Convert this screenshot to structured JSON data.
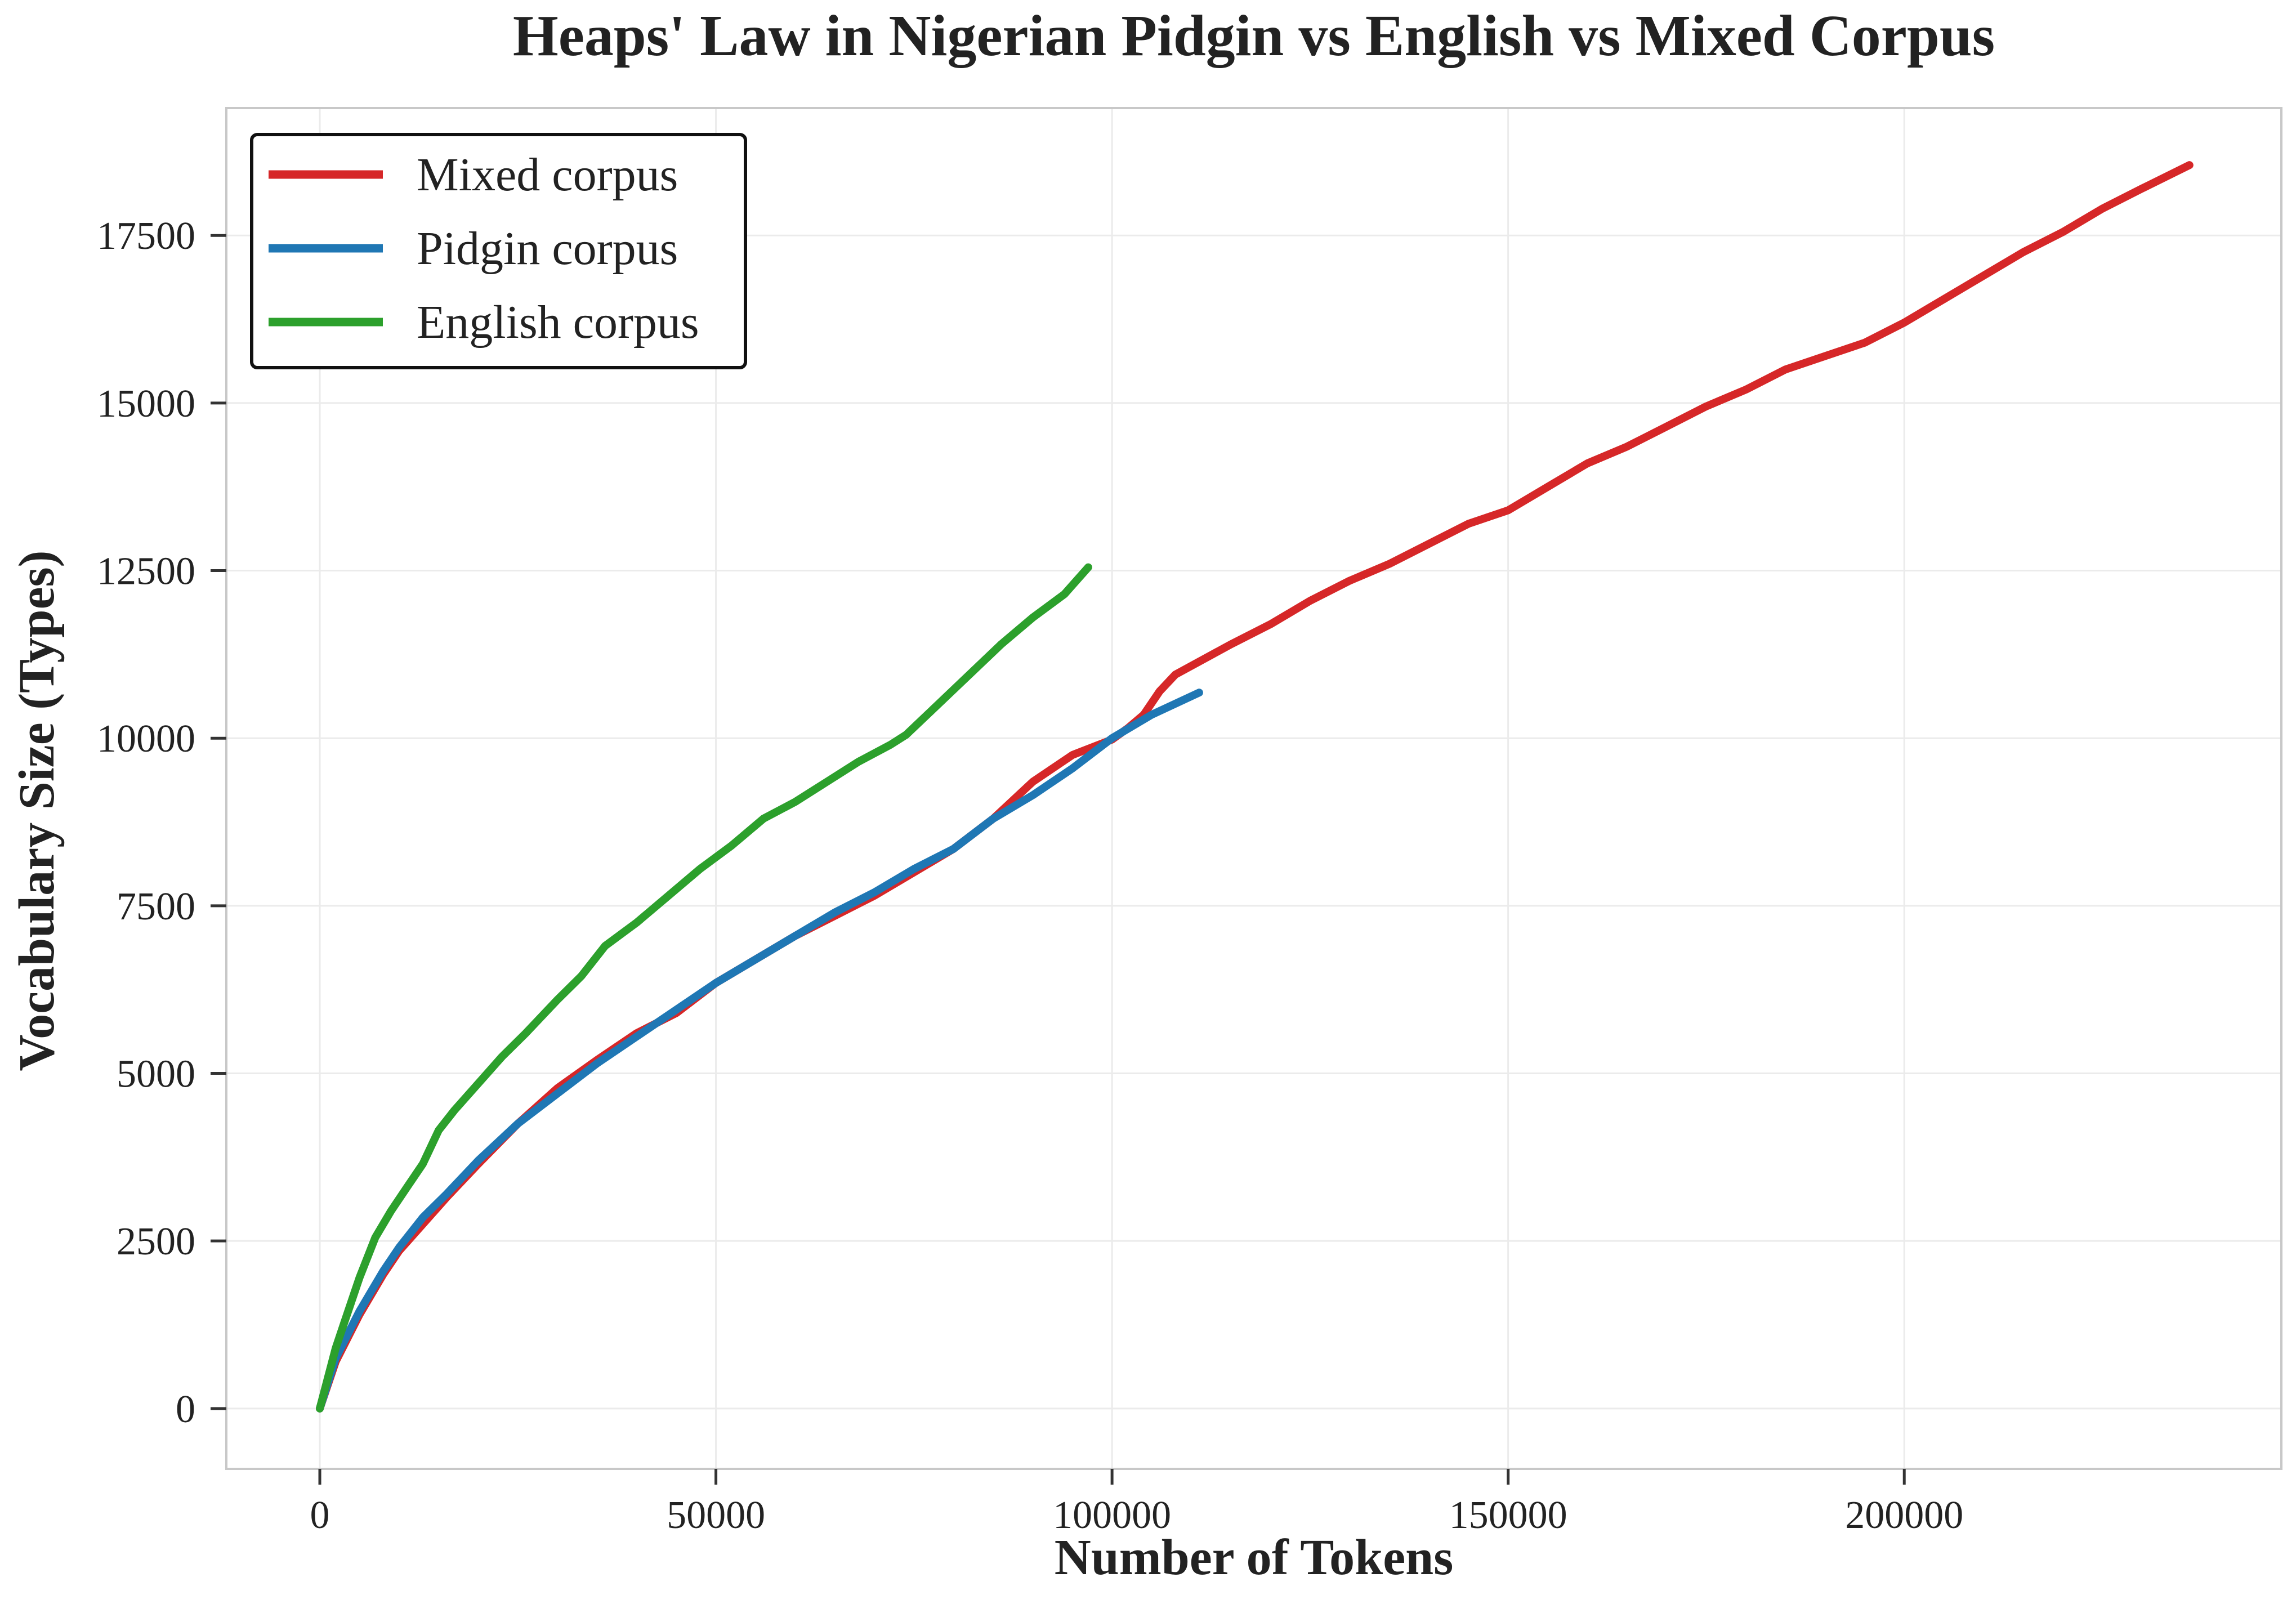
{
  "chart_data": {
    "type": "line",
    "title": "Heaps' Law in Nigerian Pidgin vs English vs Mixed Corpus",
    "xlabel": "Number of Tokens",
    "ylabel": "Vocabulary Size (Types)",
    "xlim": [
      -11800,
      247600
    ],
    "ylim": [
      -900,
      19400
    ],
    "xticks": [
      0,
      50000,
      100000,
      150000,
      200000
    ],
    "yticks": [
      0,
      2500,
      5000,
      7500,
      10000,
      12500,
      15000,
      17500
    ],
    "grid": true,
    "legend_position": "top-left",
    "series": [
      {
        "name": "Mixed corpus",
        "color": "#d62728",
        "x": [
          0,
          2000,
          5000,
          8000,
          10000,
          13000,
          16000,
          20000,
          25000,
          30000,
          35000,
          40000,
          45000,
          50000,
          55000,
          60000,
          65000,
          70000,
          75000,
          80000,
          85000,
          90000,
          95000,
          100000,
          102000,
          104000,
          106000,
          108000,
          115000,
          120000,
          125000,
          130000,
          135000,
          140000,
          145000,
          150000,
          155000,
          160000,
          165000,
          170000,
          175000,
          180000,
          185000,
          190000,
          195000,
          200000,
          205000,
          210000,
          215000,
          220000,
          225000,
          230000,
          236000
        ],
        "y": [
          0,
          700,
          1400,
          2000,
          2350,
          2750,
          3150,
          3650,
          4250,
          4780,
          5200,
          5600,
          5900,
          6350,
          6700,
          7050,
          7350,
          7650,
          8000,
          8350,
          8800,
          9350,
          9750,
          9980,
          10150,
          10350,
          10700,
          10950,
          11400,
          11700,
          12050,
          12350,
          12600,
          12900,
          13200,
          13400,
          13750,
          14100,
          14350,
          14650,
          14950,
          15200,
          15500,
          15700,
          15900,
          16200,
          16550,
          16900,
          17250,
          17550,
          17900,
          18200,
          18550
        ]
      },
      {
        "name": "Pidgin corpus",
        "color": "#1f77b4",
        "x": [
          0,
          2000,
          5000,
          8000,
          10000,
          13000,
          16000,
          20000,
          25000,
          30000,
          35000,
          40000,
          45000,
          50000,
          55000,
          60000,
          65000,
          70000,
          75000,
          80000,
          85000,
          90000,
          95000,
          100000,
          105000,
          111000
        ],
        "y": [
          0,
          750,
          1450,
          2050,
          2400,
          2850,
          3200,
          3700,
          4250,
          4700,
          5150,
          5550,
          5950,
          6350,
          6700,
          7050,
          7400,
          7700,
          8050,
          8350,
          8800,
          9150,
          9550,
          10000,
          10350,
          10680
        ]
      },
      {
        "name": "English corpus",
        "color": "#2ca02c",
        "x": [
          0,
          1000,
          2000,
          3000,
          5000,
          7000,
          9000,
          11000,
          13000,
          15000,
          17000,
          20000,
          23000,
          26000,
          30000,
          33000,
          36000,
          40000,
          44000,
          48000,
          52000,
          56000,
          60000,
          64000,
          68000,
          72000,
          74000,
          78000,
          82000,
          86000,
          90000,
          94000,
          97000
        ],
        "y": [
          0,
          450,
          900,
          1250,
          1950,
          2550,
          2950,
          3300,
          3650,
          4150,
          4450,
          4850,
          5250,
          5600,
          6100,
          6450,
          6900,
          7250,
          7650,
          8050,
          8400,
          8800,
          9050,
          9350,
          9650,
          9900,
          10050,
          10500,
          10950,
          11400,
          11800,
          12150,
          12550
        ]
      }
    ]
  }
}
